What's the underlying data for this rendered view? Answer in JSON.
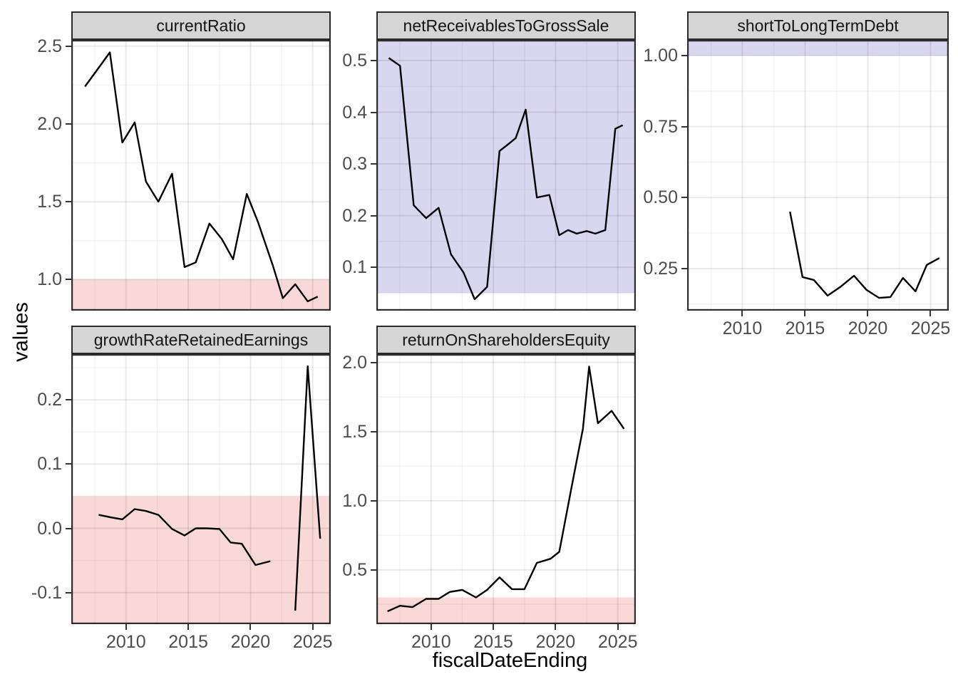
{
  "chart_data": {
    "type": "line",
    "title": "",
    "xlabel": "fiscalDateEnding",
    "ylabel": "values",
    "legend": "none",
    "grid": true,
    "line_color": "#000000",
    "band_colors": {
      "pink": "#f8d9d8",
      "blue": "#d9d6f0"
    },
    "x_domain": [
      2005.6,
      2026.45
    ],
    "x_ticks": [
      {
        "v": 2010,
        "label": "2010"
      },
      {
        "v": 2015,
        "label": "2015"
      },
      {
        "v": 2020,
        "label": "2020"
      },
      {
        "v": 2025,
        "label": "2025"
      }
    ],
    "x_minor": [
      2007.5,
      2012.5,
      2017.5,
      2022.5
    ],
    "facets": [
      {
        "name": "currentRatio",
        "col": 0,
        "row": 0,
        "show_x_axis": false,
        "y_domain": [
          0.8,
          2.54
        ],
        "y_ticks": [
          {
            "v": 1.0,
            "label": "1.0"
          },
          {
            "v": 1.5,
            "label": "1.5"
          },
          {
            "v": 2.0,
            "label": "2.0"
          },
          {
            "v": 2.5,
            "label": "2.5"
          }
        ],
        "y_minor": [
          1.25,
          1.75,
          2.25
        ],
        "bands": [
          {
            "from": null,
            "to": 1.0,
            "color": "pink"
          }
        ],
        "segments": [
          [
            [
              2006.7,
              2.24
            ],
            [
              2007.7,
              2.35
            ],
            [
              2008.7,
              2.46
            ],
            [
              2009.7,
              1.88
            ],
            [
              2010.7,
              2.01
            ],
            [
              2011.6,
              1.63
            ],
            [
              2012.6,
              1.5
            ],
            [
              2013.7,
              1.68
            ],
            [
              2014.7,
              1.08
            ],
            [
              2015.6,
              1.11
            ],
            [
              2016.7,
              1.36
            ],
            [
              2017.7,
              1.26
            ],
            [
              2018.6,
              1.13
            ],
            [
              2019.7,
              1.55
            ],
            [
              2020.6,
              1.37
            ],
            [
              2021.8,
              1.09
            ],
            [
              2022.6,
              0.88
            ],
            [
              2023.6,
              0.97
            ],
            [
              2024.6,
              0.86
            ],
            [
              2025.4,
              0.89
            ]
          ]
        ]
      },
      {
        "name": "netReceivablesToGrossSale",
        "col": 1,
        "row": 0,
        "show_x_axis": false,
        "y_domain": [
          0.016,
          0.54
        ],
        "y_ticks": [
          {
            "v": 0.1,
            "label": "0.1"
          },
          {
            "v": 0.2,
            "label": "0.2"
          },
          {
            "v": 0.3,
            "label": "0.3"
          },
          {
            "v": 0.4,
            "label": "0.4"
          },
          {
            "v": 0.5,
            "label": "0.5"
          }
        ],
        "y_minor": [
          0.05,
          0.15,
          0.25,
          0.35,
          0.45
        ],
        "bands": [
          {
            "from": 0.05,
            "to": null,
            "color": "blue"
          }
        ],
        "segments": [
          [
            [
              2006.6,
              0.505
            ],
            [
              2007.5,
              0.49
            ],
            [
              2008.6,
              0.22
            ],
            [
              2009.6,
              0.195
            ],
            [
              2010.6,
              0.215
            ],
            [
              2011.6,
              0.125
            ],
            [
              2012.6,
              0.09
            ],
            [
              2013.5,
              0.038
            ],
            [
              2014.5,
              0.062
            ],
            [
              2015.5,
              0.325
            ],
            [
              2016.3,
              0.34
            ],
            [
              2016.8,
              0.35
            ],
            [
              2017.6,
              0.405
            ],
            [
              2018.5,
              0.235
            ],
            [
              2019.5,
              0.24
            ],
            [
              2020.3,
              0.162
            ],
            [
              2021.0,
              0.172
            ],
            [
              2021.7,
              0.165
            ],
            [
              2022.5,
              0.17
            ],
            [
              2023.2,
              0.165
            ],
            [
              2024.0,
              0.172
            ],
            [
              2024.8,
              0.368
            ],
            [
              2025.4,
              0.375
            ]
          ]
        ]
      },
      {
        "name": "shortToLongTermDebt",
        "col": 2,
        "row": 0,
        "show_x_axis": true,
        "y_domain": [
          0.102,
          1.055
        ],
        "y_ticks": [
          {
            "v": 0.25,
            "label": "0.25"
          },
          {
            "v": 0.5,
            "label": "0.50"
          },
          {
            "v": 0.75,
            "label": "0.75"
          },
          {
            "v": 1.0,
            "label": "1.00"
          }
        ],
        "y_minor": [
          0.125,
          0.375,
          0.625,
          0.875
        ],
        "bands": [
          {
            "from": 1.0,
            "to": null,
            "color": "blue"
          }
        ],
        "segments": [
          [
            [
              2013.8,
              0.45
            ],
            [
              2014.8,
              0.22
            ],
            [
              2015.7,
              0.21
            ],
            [
              2016.8,
              0.155
            ],
            [
              2017.8,
              0.185
            ],
            [
              2018.9,
              0.225
            ],
            [
              2019.9,
              0.175
            ],
            [
              2020.9,
              0.147
            ],
            [
              2021.8,
              0.15
            ],
            [
              2022.8,
              0.217
            ],
            [
              2023.8,
              0.17
            ],
            [
              2024.7,
              0.263
            ],
            [
              2025.7,
              0.287
            ]
          ]
        ]
      },
      {
        "name": "growthRateRetainedEarnings",
        "col": 0,
        "row": 1,
        "show_x_axis": true,
        "y_domain": [
          -0.149,
          0.271
        ],
        "y_ticks": [
          {
            "v": -0.1,
            "label": "-0.1"
          },
          {
            "v": 0.0,
            "label": "0.0"
          },
          {
            "v": 0.1,
            "label": "0.1"
          },
          {
            "v": 0.2,
            "label": "0.2"
          }
        ],
        "y_minor": [
          -0.05,
          0.05,
          0.15,
          0.25
        ],
        "bands": [
          {
            "from": null,
            "to": 0.05,
            "color": "pink"
          }
        ],
        "segments": [
          [
            [
              2007.8,
              0.021
            ],
            [
              2008.8,
              0.017
            ],
            [
              2009.7,
              0.014
            ],
            [
              2010.7,
              0.03
            ],
            [
              2011.6,
              0.027
            ],
            [
              2012.6,
              0.021
            ],
            [
              2013.7,
              -0.001
            ],
            [
              2014.7,
              -0.011
            ],
            [
              2015.6,
              0.0
            ],
            [
              2016.5,
              0.0
            ],
            [
              2017.5,
              -0.001
            ],
            [
              2018.4,
              -0.022
            ],
            [
              2019.3,
              -0.024
            ],
            [
              2020.4,
              -0.057
            ],
            [
              2021.6,
              -0.051
            ]
          ],
          [
            [
              2023.6,
              -0.128
            ],
            [
              2024.6,
              0.252
            ],
            [
              2025.6,
              -0.016
            ]
          ]
        ]
      },
      {
        "name": "returnOnShareholdersEquity",
        "col": 1,
        "row": 1,
        "show_x_axis": true,
        "y_domain": [
          0.107,
          2.06
        ],
        "y_ticks": [
          {
            "v": 0.5,
            "label": "0.5"
          },
          {
            "v": 1.0,
            "label": "1.0"
          },
          {
            "v": 1.5,
            "label": "1.5"
          },
          {
            "v": 2.0,
            "label": "2.0"
          }
        ],
        "y_minor": [
          0.25,
          0.75,
          1.25,
          1.75
        ],
        "bands": [
          {
            "from": null,
            "to": 0.3,
            "color": "pink"
          }
        ],
        "segments": [
          [
            [
              2006.5,
              0.2
            ],
            [
              2007.5,
              0.24
            ],
            [
              2008.5,
              0.23
            ],
            [
              2009.6,
              0.29
            ],
            [
              2010.6,
              0.29
            ],
            [
              2011.5,
              0.34
            ],
            [
              2012.5,
              0.355
            ],
            [
              2013.6,
              0.3
            ],
            [
              2014.5,
              0.355
            ],
            [
              2015.5,
              0.445
            ],
            [
              2016.5,
              0.36
            ],
            [
              2017.5,
              0.36
            ],
            [
              2018.5,
              0.55
            ],
            [
              2019.6,
              0.58
            ],
            [
              2020.3,
              0.63
            ],
            [
              2021.4,
              1.15
            ],
            [
              2022.2,
              1.52
            ],
            [
              2022.7,
              1.97
            ],
            [
              2023.4,
              1.56
            ],
            [
              2024.5,
              1.65
            ],
            [
              2025.5,
              1.52
            ]
          ]
        ]
      }
    ]
  }
}
